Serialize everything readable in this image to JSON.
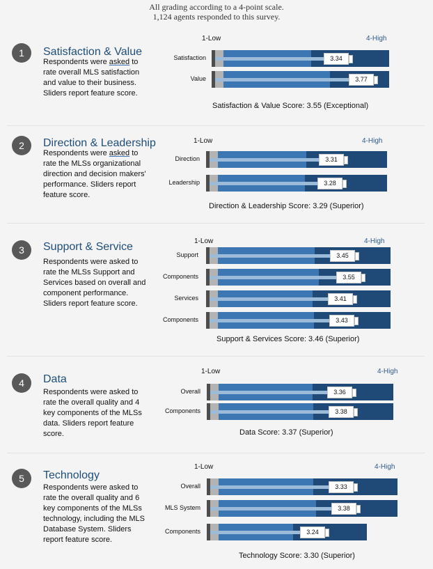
{
  "header": {
    "line1": "All grading according to a 4-point scale.",
    "line2": "1,124 agents responded to this survey."
  },
  "sections": [
    {
      "number": "1",
      "title": "Satisfaction & Value",
      "desc_before": "Respondents were ",
      "desc_highlight": "asked",
      "desc_after": " to rate overall MLS satisfaction and value to their business. Sliders report feature score.",
      "scale_low": "1-Low",
      "scale_high": "4-High",
      "score_text": "Satisfaction & Value Score: 3.55 (Exceptional)"
    },
    {
      "number": "2",
      "title": "Direction & Leadership",
      "desc_before": "Respondents were ",
      "desc_highlight": "asked",
      "desc_after": " to rate the MLSs organizational direction and decision makers' performance. Sliders report feature score.",
      "scale_low": "1-Low",
      "scale_high": "4-High",
      "score_text": "Direction & Leadership Score: 3.29 (Superior)"
    },
    {
      "number": "3",
      "title": "Support & Service",
      "desc_before": "Respondents were asked to rate the MLSs Support and Services based on overall and component performance. Sliders report feature score.",
      "desc_highlight": "",
      "desc_after": "",
      "scale_low": "1-Low",
      "scale_high": "4-High",
      "score_text": "Support & Services Score: 3.46 (Superior)"
    },
    {
      "number": "4",
      "title": "Data",
      "desc_before": "Respondents were asked to rate the overall quality and 4 key components of the MLSs data. Sliders report feature score.",
      "desc_highlight": "",
      "desc_after": "",
      "scale_low": "1-Low",
      "scale_high": "4-High",
      "score_text": "Data Score: 3.37 (Superior)"
    },
    {
      "number": "5",
      "title": "Technology",
      "desc_before": "Respondents were asked to rate the overall quality and 6 key components of the MLSs technology, including the MLS Database System. Sliders report feature score.",
      "desc_highlight": "",
      "desc_after": "",
      "scale_low": "1-Low",
      "scale_high": "4-High",
      "score_text": "Technology Score: 3.30 (Superior)"
    }
  ],
  "chart_data": {
    "type": "bar",
    "xlim": [
      1,
      4
    ],
    "scale_labels": [
      "1-Low",
      "4-High"
    ],
    "colors": {
      "bar_dark": "#1f4a78",
      "bar_mid": "#3d77b3",
      "slider": "#9cbbd9",
      "accent": "#1f4e79"
    },
    "series": [
      {
        "name": "Satisfaction",
        "section": 1,
        "value": 3.34
      },
      {
        "name": "Value",
        "section": 1,
        "value": 3.77
      },
      {
        "name": "Direction",
        "section": 2,
        "value": 3.31
      },
      {
        "name": "Leadership",
        "section": 2,
        "value": 3.28
      },
      {
        "name": "Support",
        "section": 3,
        "value": 3.45
      },
      {
        "name": "Components",
        "section": 3,
        "value": 3.55
      },
      {
        "name": "Services",
        "section": 3,
        "value": 3.41
      },
      {
        "name": "Components",
        "section": 3,
        "value": 3.43
      },
      {
        "name": "Overall",
        "section": 4,
        "value": 3.36
      },
      {
        "name": "Components",
        "section": 4,
        "value": 3.38
      },
      {
        "name": "Overall",
        "section": 5,
        "value": 3.33
      },
      {
        "name": "MLS  System",
        "section": 5,
        "value": 3.38
      },
      {
        "name": "Components",
        "section": 5,
        "value": 3.24
      }
    ],
    "section_scores": [
      3.55,
      3.29,
      3.46,
      3.37,
      3.3
    ]
  }
}
